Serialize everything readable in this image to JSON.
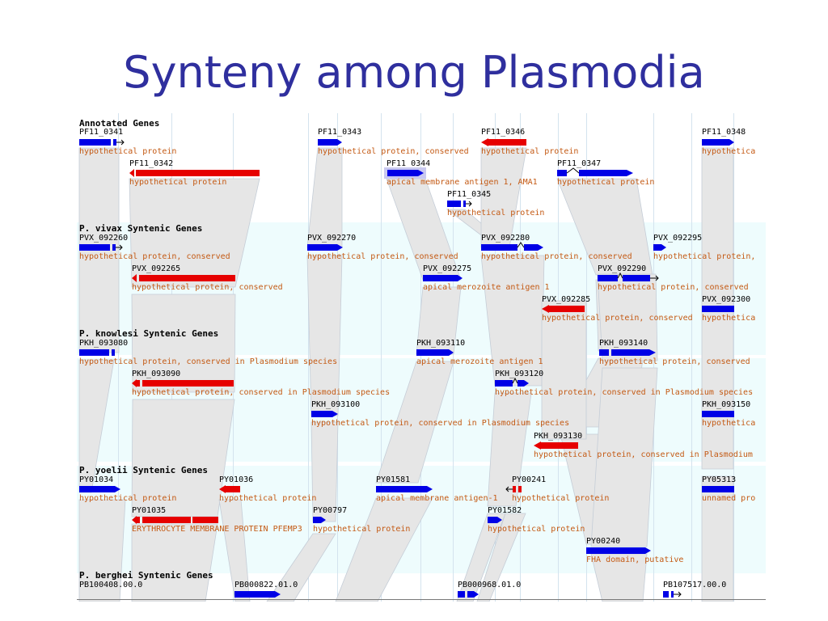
{
  "slide": {
    "title": "Synteny among Plasmodia"
  },
  "sections": [
    {
      "label": "Annotated Genes"
    },
    {
      "label": "P. vivax Syntenic Genes"
    },
    {
      "label": "P. knowlesi Syntenic Genes"
    },
    {
      "label": "P. yoelii Syntenic Genes"
    },
    {
      "label": "P. berghei Syntenic Genes"
    }
  ],
  "genes": {
    "pf11_0341": {
      "id": "PF11_0341",
      "desc": "hypothetical protein"
    },
    "pf11_0342": {
      "id": "PF11_0342",
      "desc": "hypothetical protein"
    },
    "pf11_0343": {
      "id": "PF11_0343",
      "desc": "hypothetical protein, conserved"
    },
    "pf11_0344": {
      "id": "PF11_0344",
      "desc": "apical membrane antigen 1,  AMA1"
    },
    "pf11_0345": {
      "id": "PF11_0345",
      "desc": "hypothetical protein"
    },
    "pf11_0346": {
      "id": "PF11_0346",
      "desc": "hypothetical protein"
    },
    "pf11_0347": {
      "id": "PF11_0347",
      "desc": "hypothetical protein"
    },
    "pf11_0348": {
      "id": "PF11_0348",
      "desc": "hypothetica"
    },
    "pvx_092260": {
      "id": "PVX_092260",
      "desc": "hypothetical protein, conserved"
    },
    "pvx_092265": {
      "id": "PVX_092265",
      "desc": "hypothetical protein, conserved"
    },
    "pvx_092270": {
      "id": "PVX_092270",
      "desc": "hypothetical protein, conserved"
    },
    "pvx_092275": {
      "id": "PVX_092275",
      "desc": "apical merozoite antigen 1"
    },
    "pvx_092280": {
      "id": "PVX_092280",
      "desc": "hypothetical protein, conserved"
    },
    "pvx_092285": {
      "id": "PVX_092285",
      "desc": "hypothetical protein, conserved"
    },
    "pvx_092290": {
      "id": "PVX_092290",
      "desc": "hypothetical protein, conserved"
    },
    "pvx_092295": {
      "id": "PVX_092295",
      "desc": "hypothetical protein,"
    },
    "pvx_092300": {
      "id": "PVX_092300",
      "desc": "hypothetica"
    },
    "pkh_093080": {
      "id": "PKH_093080",
      "desc": "hypothetical protein, conserved in Plasmodium species"
    },
    "pkh_093090": {
      "id": "PKH_093090",
      "desc": "hypothetical protein, conserved in Plasmodium species"
    },
    "pkh_093100": {
      "id": "PKH_093100",
      "desc": "hypothetical protein, conserved in Plasmodium species"
    },
    "pkh_093110": {
      "id": "PKH_093110",
      "desc": "apical merozoite antigen 1"
    },
    "pkh_093120": {
      "id": "PKH_093120",
      "desc": "hypothetical protein, conserved in Plasmodium species"
    },
    "pkh_093130": {
      "id": "PKH_093130",
      "desc": "hypothetical protein, conserved in Plasmodium"
    },
    "pkh_093140": {
      "id": "PKH_093140",
      "desc": "hypothetical protein, conserved"
    },
    "pkh_093150": {
      "id": "PKH_093150",
      "desc": "hypothetica"
    },
    "py01034": {
      "id": "PY01034",
      "desc": "hypothetical protein"
    },
    "py01035": {
      "id": "PY01035",
      "desc": "ERYTHROCYTE MEMBRANE PROTEIN PFEMP3"
    },
    "py01036": {
      "id": "PY01036",
      "desc": "hypothetical protein"
    },
    "py00797": {
      "id": "PY00797",
      "desc": "hypothetical protein"
    },
    "py01581": {
      "id": "PY01581",
      "desc": "apical membrane antigen-1"
    },
    "py00241": {
      "id": "PY00241",
      "desc": "hypothetical protein"
    },
    "py01582": {
      "id": "PY01582",
      "desc": "hypothetical protein"
    },
    "py00240": {
      "id": "PY00240",
      "desc": "FHA domain, putative"
    },
    "py05313": {
      "id": "PY05313",
      "desc": "unnamed pro"
    },
    "pb100408": {
      "id": "PB100408.00.0"
    },
    "pb000822": {
      "id": "PB000822.01.0"
    },
    "pb000968": {
      "id": "PB000968.01.0"
    },
    "pb107517": {
      "id": "PB107517.00.0"
    }
  },
  "colors": {
    "forward_gene": "#0000e6",
    "reverse_gene": "#e60000",
    "synteny_link": "#e6e6e6",
    "synteny_band": "#eefcfd",
    "title": "#2f2f9e",
    "description": "#c45a14"
  }
}
